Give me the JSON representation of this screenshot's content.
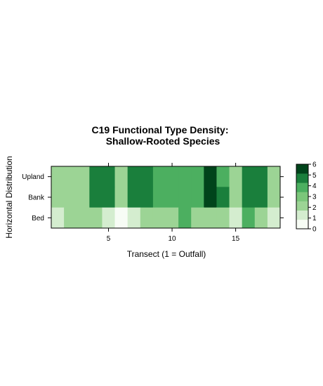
{
  "chart_data": {
    "type": "heatmap",
    "title_line1": "C19 Functional Type Density:",
    "title_line2": "Shallow-Rooted Species",
    "xlabel": "Transect (1 = Outfall)",
    "ylabel": "Horizontal Distribution",
    "x": [
      1,
      2,
      3,
      4,
      5,
      6,
      7,
      8,
      9,
      10,
      11,
      12,
      13,
      14,
      15,
      16,
      17,
      18
    ],
    "x_ticks": [
      5,
      10,
      15
    ],
    "x_range": [
      0.5,
      18.5
    ],
    "y_categories": [
      "Upland",
      "Bank",
      "Bed"
    ],
    "values": {
      "Upland": [
        2,
        2,
        2,
        5,
        5,
        2,
        5,
        5,
        4,
        4,
        4,
        4,
        6,
        4,
        2,
        5,
        5,
        2
      ],
      "Bank": [
        2,
        2,
        2,
        5,
        5,
        2,
        5,
        5,
        4,
        4,
        4,
        4,
        6,
        5,
        2,
        5,
        5,
        2
      ],
      "Bed": [
        1,
        2,
        2,
        2,
        1,
        0,
        1,
        2,
        2,
        2,
        4,
        2,
        2,
        2,
        1,
        4,
        2,
        1
      ]
    },
    "colorkey": {
      "ticks": [
        0,
        1,
        2,
        3,
        4,
        5,
        6
      ],
      "colors": [
        "#F7FCF5",
        "#D4EDCF",
        "#9CD495",
        "#7BC67A",
        "#4CAF60",
        "#1A7F3C",
        "#00441B"
      ]
    }
  }
}
